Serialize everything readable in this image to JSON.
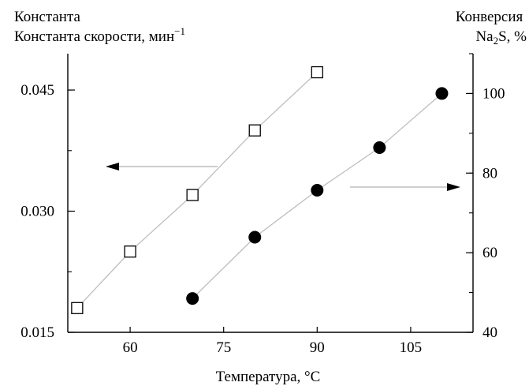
{
  "chart_data": {
    "type": "scatter",
    "xlabel": "Температура, °C",
    "ylabel_left": "Константа скорости, мин",
    "ylabel_left_sup": "−1",
    "ylabel_right_top": "Конверсия",
    "ylabel_right_bottom": "Na",
    "ylabel_right_sub": "2",
    "ylabel_right_tail": "S, %",
    "xlim": [
      50,
      115
    ],
    "x_ticks": [
      60,
      75,
      90,
      105
    ],
    "ylim_left": [
      0.015,
      0.0495
    ],
    "y_left_ticks": [
      "0.015",
      "0.030",
      "0.045"
    ],
    "ylim_right": [
      40,
      110
    ],
    "y_right_ticks": [
      40,
      60,
      80,
      100
    ],
    "grid": false,
    "series": [
      {
        "axis": "left",
        "marker": "open-square",
        "x": [
          51.5,
          60,
          70,
          80,
          90
        ],
        "y": [
          0.018,
          0.025,
          0.032,
          0.04,
          0.0472
        ]
      },
      {
        "axis": "right",
        "marker": "filled-circle",
        "x": [
          70,
          80,
          90,
          100,
          110
        ],
        "y": [
          48.5,
          63.9,
          75.7,
          86.4,
          100
        ]
      }
    ],
    "annotations": [
      {
        "type": "arrow",
        "direction": "left",
        "points_to": "left-axis"
      },
      {
        "type": "arrow",
        "direction": "right",
        "points_to": "right-axis"
      }
    ]
  }
}
